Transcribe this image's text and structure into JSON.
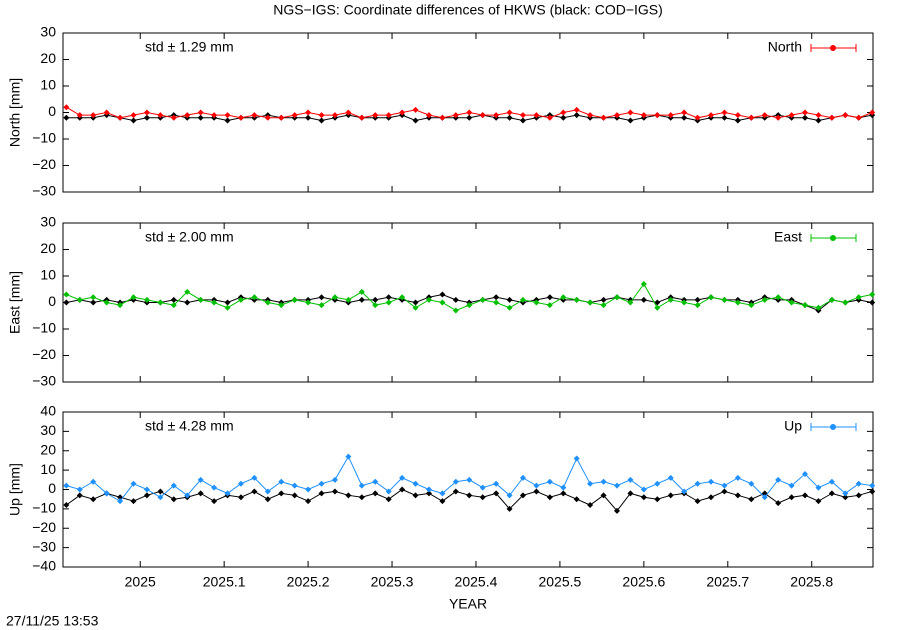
{
  "footer": "27/11/25 13:53",
  "chart_data": [
    {
      "type": "line",
      "title": "NGS−IGS: Coordinate differences of HKWS (black: COD−IGS)",
      "y_label": "North [mm]",
      "annotation": "std ± 1.29 mm",
      "annotation_color": "#ff0000",
      "xlim": [
        2024.908,
        2025.873
      ],
      "ylim": [
        -30,
        30
      ],
      "yticks": [
        {
          "value": -30,
          "label": "−30"
        },
        {
          "value": -20,
          "label": "−20"
        },
        {
          "value": -10,
          "label": "−10"
        },
        0,
        10,
        20,
        30
      ],
      "x": [
        2024.912,
        2024.928,
        2024.944,
        2024.96,
        2024.976,
        2024.992,
        2025.008,
        2025.024,
        2025.04,
        2025.056,
        2025.072,
        2025.088,
        2025.104,
        2025.12,
        2025.136,
        2025.152,
        2025.168,
        2025.184,
        2025.2,
        2025.216,
        2025.232,
        2025.248,
        2025.264,
        2025.28,
        2025.296,
        2025.312,
        2025.328,
        2025.344,
        2025.36,
        2025.376,
        2025.392,
        2025.408,
        2025.424,
        2025.44,
        2025.456,
        2025.472,
        2025.488,
        2025.504,
        2025.52,
        2025.536,
        2025.552,
        2025.568,
        2025.584,
        2025.6,
        2025.616,
        2025.632,
        2025.648,
        2025.664,
        2025.68,
        2025.696,
        2025.712,
        2025.728,
        2025.744,
        2025.76,
        2025.776,
        2025.792,
        2025.808,
        2025.824,
        2025.84,
        2025.856,
        2025.872
      ],
      "series": [
        {
          "color": "#000000",
          "values": [
            -2,
            -2,
            -2,
            -1,
            -2,
            -3,
            -2,
            -2,
            -1,
            -2,
            -2,
            -2,
            -3,
            -2,
            -2,
            -1,
            -2,
            -2,
            -2,
            -3,
            -2,
            -1,
            -2,
            -2,
            -2,
            -1,
            -3,
            -2,
            -2,
            -2,
            -2,
            -1,
            -2,
            -2,
            -3,
            -2,
            -1,
            -2,
            -1,
            -2,
            -2,
            -2,
            -3,
            -2,
            -1,
            -2,
            -2,
            -3,
            -2,
            -2,
            -3,
            -2,
            -2,
            -1,
            -2,
            -2,
            -3,
            -2,
            -1,
            -2,
            -1
          ]
        },
        {
          "name": "North",
          "color": "#ff0000",
          "values": [
            2,
            -1,
            -1,
            0,
            -2,
            -1,
            0,
            -1,
            -2,
            -1,
            0,
            -1,
            -1,
            -2,
            -1,
            -2,
            -2,
            -1,
            0,
            -1,
            -1,
            0,
            -2,
            -1,
            -1,
            0,
            1,
            -1,
            -2,
            -1,
            0,
            -1,
            -1,
            0,
            -1,
            -1,
            -2,
            0,
            1,
            -1,
            -2,
            -1,
            0,
            -1,
            -1,
            -1,
            0,
            -2,
            -1,
            0,
            -1,
            -2,
            -1,
            -2,
            -1,
            0,
            -1,
            -2,
            -1,
            -2,
            0
          ]
        }
      ]
    },
    {
      "type": "line",
      "y_label": "East [mm]",
      "annotation": "std ± 2.00 mm",
      "annotation_color": "#00c000",
      "xlim": [
        2024.908,
        2025.873
      ],
      "ylim": [
        -30,
        30
      ],
      "yticks": [
        {
          "value": -30,
          "label": "−30"
        },
        {
          "value": -20,
          "label": "−20"
        },
        {
          "value": -10,
          "label": "−10"
        },
        0,
        10,
        20,
        30
      ],
      "x": [
        2024.912,
        2024.928,
        2024.944,
        2024.96,
        2024.976,
        2024.992,
        2025.008,
        2025.024,
        2025.04,
        2025.056,
        2025.072,
        2025.088,
        2025.104,
        2025.12,
        2025.136,
        2025.152,
        2025.168,
        2025.184,
        2025.2,
        2025.216,
        2025.232,
        2025.248,
        2025.264,
        2025.28,
        2025.296,
        2025.312,
        2025.328,
        2025.344,
        2025.36,
        2025.376,
        2025.392,
        2025.408,
        2025.424,
        2025.44,
        2025.456,
        2025.472,
        2025.488,
        2025.504,
        2025.52,
        2025.536,
        2025.552,
        2025.568,
        2025.584,
        2025.6,
        2025.616,
        2025.632,
        2025.648,
        2025.664,
        2025.68,
        2025.696,
        2025.712,
        2025.728,
        2025.744,
        2025.76,
        2025.776,
        2025.792,
        2025.808,
        2025.824,
        2025.84,
        2025.856,
        2025.872
      ],
      "series": [
        {
          "color": "#000000",
          "values": [
            0,
            1,
            0,
            1,
            0,
            1,
            0,
            0,
            1,
            0,
            1,
            1,
            0,
            2,
            1,
            1,
            0,
            1,
            1,
            2,
            1,
            0,
            1,
            1,
            2,
            1,
            0,
            2,
            3,
            1,
            0,
            1,
            2,
            1,
            0,
            1,
            2,
            1,
            1,
            0,
            1,
            2,
            1,
            1,
            0,
            2,
            1,
            1,
            2,
            1,
            1,
            0,
            2,
            1,
            1,
            -1,
            -3,
            1,
            0,
            1,
            0
          ]
        },
        {
          "name": "East",
          "color": "#00c000",
          "values": [
            3,
            1,
            2,
            0,
            -1,
            2,
            1,
            0,
            -1,
            4,
            1,
            0,
            -2,
            1,
            2,
            0,
            -1,
            1,
            0,
            -1,
            2,
            1,
            4,
            -1,
            0,
            2,
            -2,
            1,
            0,
            -3,
            -1,
            1,
            0,
            -2,
            1,
            0,
            -1,
            2,
            1,
            0,
            -1,
            2,
            0,
            7,
            -2,
            1,
            0,
            -1,
            2,
            1,
            0,
            -1,
            1,
            2,
            0,
            -1,
            -2,
            1,
            0,
            2,
            3
          ]
        }
      ]
    },
    {
      "type": "line",
      "y_label": "Up [mm]",
      "x_label": "YEAR",
      "annotation": "std ± 4.28 mm",
      "annotation_color": "#1e90ff",
      "xlim": [
        2024.908,
        2025.873
      ],
      "ylim": [
        -40,
        40
      ],
      "yticks": [
        {
          "value": -40,
          "label": "−40"
        },
        {
          "value": -30,
          "label": "−30"
        },
        {
          "value": -20,
          "label": "−20"
        },
        {
          "value": -10,
          "label": "−10"
        },
        0,
        10,
        20,
        30,
        40
      ],
      "xticks": [
        2025,
        2025.1,
        2025.2,
        2025.3,
        2025.4,
        2025.5,
        2025.6,
        2025.7,
        2025.8
      ],
      "x": [
        2024.912,
        2024.928,
        2024.944,
        2024.96,
        2024.976,
        2024.992,
        2025.008,
        2025.024,
        2025.04,
        2025.056,
        2025.072,
        2025.088,
        2025.104,
        2025.12,
        2025.136,
        2025.152,
        2025.168,
        2025.184,
        2025.2,
        2025.216,
        2025.232,
        2025.248,
        2025.264,
        2025.28,
        2025.296,
        2025.312,
        2025.328,
        2025.344,
        2025.36,
        2025.376,
        2025.392,
        2025.408,
        2025.424,
        2025.44,
        2025.456,
        2025.472,
        2025.488,
        2025.504,
        2025.52,
        2025.536,
        2025.552,
        2025.568,
        2025.584,
        2025.6,
        2025.616,
        2025.632,
        2025.648,
        2025.664,
        2025.68,
        2025.696,
        2025.712,
        2025.728,
        2025.744,
        2025.76,
        2025.776,
        2025.792,
        2025.808,
        2025.824,
        2025.84,
        2025.856,
        2025.872
      ],
      "series": [
        {
          "color": "#000000",
          "values": [
            -8,
            -3,
            -5,
            -2,
            -4,
            -6,
            -3,
            -1,
            -5,
            -4,
            -2,
            -6,
            -3,
            -4,
            -1,
            -5,
            -2,
            -3,
            -6,
            -2,
            -1,
            -3,
            -4,
            -2,
            -5,
            0,
            -3,
            -2,
            -6,
            -1,
            -3,
            -4,
            -2,
            -10,
            -3,
            -1,
            -4,
            -2,
            -5,
            -8,
            -3,
            -11,
            -2,
            -4,
            -5,
            -3,
            -2,
            -6,
            -4,
            -1,
            -3,
            -5,
            -2,
            -7,
            -4,
            -3,
            -6,
            -2,
            -4,
            -3,
            -1
          ]
        },
        {
          "name": "Up",
          "color": "#1e90ff",
          "values": [
            2,
            0,
            4,
            -2,
            -6,
            3,
            0,
            -4,
            2,
            -3,
            5,
            1,
            -2,
            3,
            6,
            -1,
            4,
            2,
            0,
            3,
            5,
            17,
            2,
            4,
            -1,
            6,
            3,
            0,
            -2,
            4,
            5,
            1,
            3,
            -3,
            6,
            2,
            4,
            1,
            16,
            3,
            4,
            2,
            5,
            0,
            3,
            6,
            -1,
            3,
            4,
            2,
            6,
            3,
            -4,
            5,
            2,
            8,
            1,
            4,
            -2,
            3,
            2
          ]
        }
      ]
    }
  ]
}
